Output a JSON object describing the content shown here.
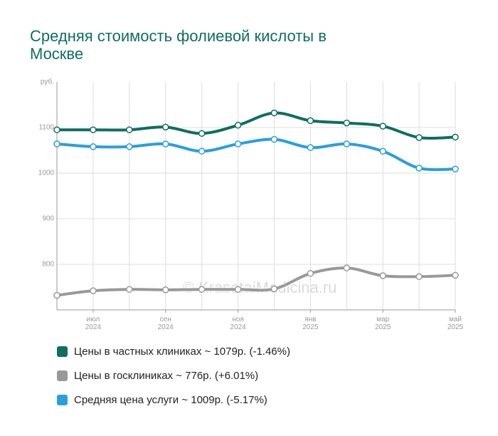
{
  "chart_data": {
    "type": "line",
    "title": "Средняя стоимость фолиевой кислоты в Москве",
    "y_unit": "руб.",
    "watermark": "© KrasotaiMedicina.ru",
    "categories": [
      null,
      "июл 2024",
      null,
      "сен 2024",
      null,
      "ноя 2024",
      null,
      "янв 2025",
      null,
      "мар 2025",
      null,
      "май 2025"
    ],
    "ylim": [
      700,
      1200
    ],
    "yticks": [
      800,
      900,
      1000,
      1100
    ],
    "grid": true,
    "series": [
      {
        "name": "Цены в частных клиниках ~ 1079р. (-1.46%)",
        "color": "#0e6e62",
        "values": [
          1095,
          1095,
          1095,
          1101,
          1087,
          1105,
          1132,
          1115,
          1110,
          1103,
          1078,
          1079
        ]
      },
      {
        "name": "Цены в госклиниках ~ 776р. (+6.01%)",
        "color": "#999999",
        "values": [
          732,
          742,
          745,
          744,
          745,
          745,
          746,
          780,
          792,
          775,
          773,
          776
        ]
      },
      {
        "name": "Средняя цена услуги ~ 1009р. (-5.17%)",
        "color": "#2a9fdf",
        "values": [
          1064,
          1058,
          1058,
          1064,
          1048,
          1064,
          1074,
          1056,
          1064,
          1048,
          1011,
          1009
        ]
      }
    ]
  }
}
